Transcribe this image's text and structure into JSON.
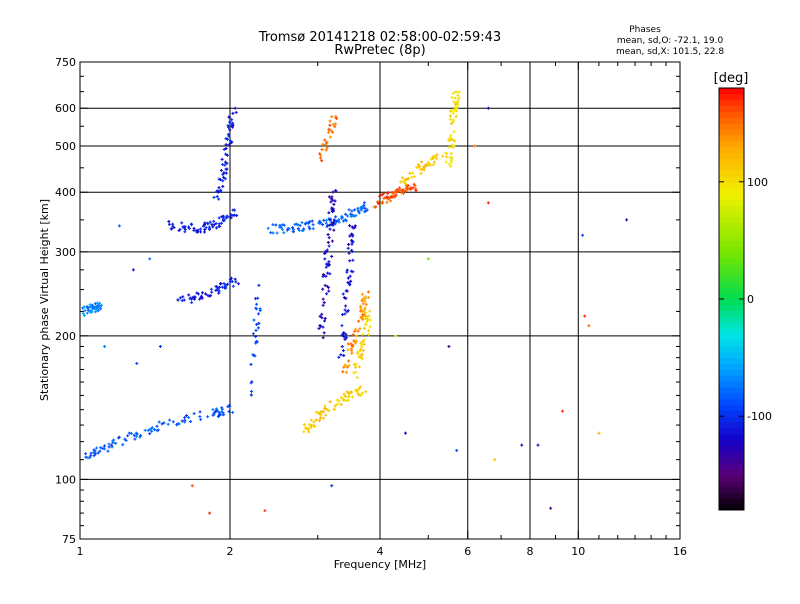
{
  "chart_data": {
    "type": "scatter",
    "title": "Tromsø 20141218 02:58:00-02:59:43",
    "subtitle": "RwPretec (8p)",
    "xlabel": "Frequency [MHz]",
    "ylabel": "Stationary phase Virtual Height [km]",
    "x_scale": "log",
    "y_scale": "log",
    "xlim": [
      1,
      16
    ],
    "ylim": [
      75,
      750
    ],
    "x_ticks": [
      1,
      2,
      4,
      6,
      8,
      10,
      16
    ],
    "x_tick_labels": [
      "1",
      "2",
      "4",
      "6",
      "8",
      "10",
      "16"
    ],
    "y_ticks": [
      75,
      100,
      200,
      300,
      400,
      500,
      600,
      750
    ],
    "y_tick_labels": [
      "75",
      "100",
      "200",
      "300",
      "400",
      "500",
      "600",
      "750"
    ],
    "grid": true,
    "colorbar": {
      "label": "[deg]",
      "range": [
        -180,
        180
      ],
      "ticks": [
        -100,
        0,
        100
      ],
      "tick_labels": [
        "-100",
        "0",
        "100"
      ],
      "colormap": "rainbow"
    },
    "stats": {
      "header": "Phases",
      "line1": "mean, sd,O: -72.1, 19.0",
      "line2": "mean, sd,X: 101.5, 22.8"
    },
    "traces": [
      {
        "x": [
          1.02,
          1.1,
          1.2,
          1.35,
          1.5,
          1.7,
          1.9,
          2.05
        ],
        "y": [
          112,
          116,
          120,
          126,
          131,
          135,
          138,
          141
        ],
        "phase": -85
      },
      {
        "x": [
          1.55,
          1.7,
          1.85,
          1.95,
          2.05
        ],
        "y": [
          235,
          240,
          248,
          255,
          262
        ],
        "phase": -110
      },
      {
        "x": [
          1.5,
          1.62,
          1.75,
          1.85,
          1.95,
          2.05
        ],
        "y": [
          342,
          338,
          335,
          340,
          350,
          365
        ],
        "phase": -105
      },
      {
        "x": [
          1.88,
          1.93,
          1.97,
          2.0,
          2.03
        ],
        "y": [
          380,
          430,
          480,
          540,
          600
        ],
        "phase": -110
      },
      {
        "x": [
          2.4,
          2.6,
          2.8,
          3.0,
          3.2,
          3.4,
          3.6,
          3.8
        ],
        "y": [
          335,
          335,
          338,
          342,
          348,
          355,
          365,
          375
        ],
        "phase": -80
      },
      {
        "x": [
          3.05,
          3.1,
          3.13,
          3.18,
          3.2,
          3.22
        ],
        "y": [
          200,
          240,
          280,
          320,
          360,
          400
        ],
        "phase": -120
      },
      {
        "x": [
          3.35,
          3.4,
          3.45,
          3.5,
          3.52
        ],
        "y": [
          180,
          220,
          260,
          300,
          340
        ],
        "phase": -115
      },
      {
        "x": [
          2.8,
          2.95,
          3.1,
          3.3,
          3.5,
          3.7
        ],
        "y": [
          127,
          131,
          140,
          146,
          150,
          154
        ],
        "phase": 110
      },
      {
        "x": [
          3.4,
          3.5,
          3.6,
          3.7,
          3.75
        ],
        "y": [
          170,
          190,
          210,
          230,
          245
        ],
        "phase": 140
      },
      {
        "x": [
          3.55,
          3.65,
          3.75,
          3.8
        ],
        "y": [
          165,
          185,
          205,
          225
        ],
        "phase": 105
      },
      {
        "x": [
          3.9,
          4.1,
          4.3,
          4.5,
          4.7
        ],
        "y": [
          380,
          390,
          398,
          405,
          410
        ],
        "phase": 160
      },
      {
        "x": [
          4.4,
          4.7,
          5.0,
          5.3
        ],
        "y": [
          420,
          440,
          460,
          480
        ],
        "phase": 115
      },
      {
        "x": [
          5.45,
          5.55,
          5.6,
          5.65,
          5.7
        ],
        "y": [
          450,
          500,
          560,
          620,
          650
        ],
        "phase": 100
      },
      {
        "x": [
          3.05,
          3.15,
          3.25
        ],
        "y": [
          470,
          520,
          580
        ],
        "phase": 150
      },
      {
        "x": [
          1.02,
          1.05,
          1.08,
          1.1
        ],
        "y": [
          225,
          228,
          230,
          232
        ],
        "phase": -70
      },
      {
        "x": [
          2.22,
          2.25,
          2.28
        ],
        "y": [
          150,
          200,
          260
        ],
        "phase": -95
      }
    ],
    "outliers": [
      {
        "x": 1.68,
        "y": 97,
        "phase": 160
      },
      {
        "x": 1.82,
        "y": 85,
        "phase": 170
      },
      {
        "x": 2.35,
        "y": 86,
        "phase": 165
      },
      {
        "x": 3.2,
        "y": 97,
        "phase": -100
      },
      {
        "x": 4.5,
        "y": 125,
        "phase": -130
      },
      {
        "x": 5.7,
        "y": 115,
        "phase": -85
      },
      {
        "x": 6.8,
        "y": 110,
        "phase": 120
      },
      {
        "x": 7.7,
        "y": 118,
        "phase": -130
      },
      {
        "x": 8.3,
        "y": 118,
        "phase": -130
      },
      {
        "x": 8.8,
        "y": 87,
        "phase": -140
      },
      {
        "x": 9.3,
        "y": 139,
        "phase": 170
      },
      {
        "x": 10.2,
        "y": 325,
        "phase": -90
      },
      {
        "x": 10.3,
        "y": 220,
        "phase": 170
      },
      {
        "x": 10.5,
        "y": 210,
        "phase": 150
      },
      {
        "x": 11.0,
        "y": 125,
        "phase": 130
      },
      {
        "x": 12.5,
        "y": 350,
        "phase": -130
      },
      {
        "x": 6.6,
        "y": 600,
        "phase": -130
      },
      {
        "x": 6.6,
        "y": 380,
        "phase": 170
      },
      {
        "x": 6.2,
        "y": 500,
        "phase": 150
      },
      {
        "x": 5.0,
        "y": 290,
        "phase": 40
      },
      {
        "x": 4.3,
        "y": 200,
        "phase": 80
      },
      {
        "x": 5.5,
        "y": 190,
        "phase": -140
      },
      {
        "x": 1.2,
        "y": 340,
        "phase": -80
      },
      {
        "x": 1.28,
        "y": 275,
        "phase": -110
      },
      {
        "x": 1.38,
        "y": 290,
        "phase": -75
      },
      {
        "x": 1.12,
        "y": 190,
        "phase": -70
      },
      {
        "x": 1.45,
        "y": 190,
        "phase": -100
      },
      {
        "x": 1.3,
        "y": 175,
        "phase": -90
      }
    ]
  }
}
